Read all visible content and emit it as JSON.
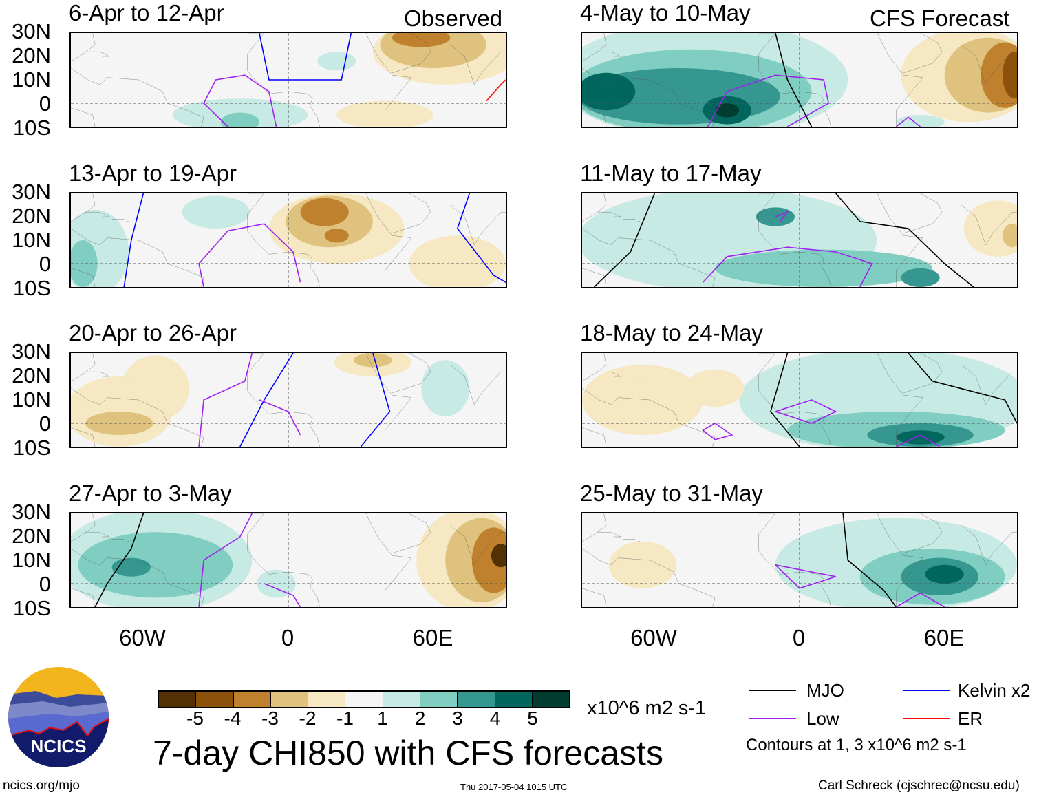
{
  "header": {
    "observed_label": "Observed",
    "forecast_label": "CFS Forecast"
  },
  "lat_labels": [
    "30N",
    "20N",
    "10N",
    "0",
    "10S"
  ],
  "lon_labels": [
    "60W",
    "0",
    "60E"
  ],
  "panels": [
    {
      "title": "6-Apr to 12-Apr",
      "group": "observed",
      "shading": [
        {
          "lon": 65,
          "lat": 22,
          "rlon": 30,
          "rlat": 14,
          "level": -1
        },
        {
          "lon": 60,
          "lat": 25,
          "rlon": 22,
          "rlat": 10,
          "level": -2
        },
        {
          "lon": 55,
          "lat": 28,
          "rlon": 12,
          "rlat": 4,
          "level": -3
        },
        {
          "lon": 40,
          "lat": -5,
          "rlon": 20,
          "rlat": 6,
          "level": -1
        },
        {
          "lon": -20,
          "lat": -5,
          "rlon": 28,
          "rlat": 7,
          "level": 1
        },
        {
          "lon": -20,
          "lat": -8,
          "rlon": 8,
          "rlat": 4,
          "level": 2
        },
        {
          "lon": 20,
          "lat": 18,
          "rlon": 8,
          "rlat": 4,
          "level": 1
        }
      ],
      "contours": [
        {
          "type": "Kelvin",
          "points": [
            [
              -12,
              30
            ],
            [
              -8,
              10
            ],
            [
              22,
              10
            ],
            [
              24,
              20
            ],
            [
              26,
              30
            ]
          ]
        },
        {
          "type": "Low",
          "points": [
            [
              -25,
              -10
            ],
            [
              -35,
              0
            ],
            [
              -30,
              10
            ],
            [
              -18,
              12
            ],
            [
              -8,
              5
            ],
            [
              -5,
              -10
            ]
          ]
        },
        {
          "type": "ER",
          "points": [
            [
              82,
              1
            ],
            [
              88,
              8
            ],
            [
              90,
              10
            ]
          ]
        }
      ]
    },
    {
      "title": "13-Apr to 19-Apr",
      "group": "observed",
      "shading": [
        {
          "lon": 20,
          "lat": 15,
          "rlon": 28,
          "rlat": 15,
          "level": -1
        },
        {
          "lon": 17,
          "lat": 18,
          "rlon": 18,
          "rlat": 11,
          "level": -2
        },
        {
          "lon": 15,
          "lat": 22,
          "rlon": 10,
          "rlat": 6,
          "level": -3
        },
        {
          "lon": 20,
          "lat": 12,
          "rlon": 5,
          "rlat": 3,
          "level": -3
        },
        {
          "lon": 70,
          "lat": 0,
          "rlon": 20,
          "rlat": 12,
          "level": -1
        },
        {
          "lon": -80,
          "lat": 5,
          "rlon": 14,
          "rlat": 18,
          "level": 1
        },
        {
          "lon": -85,
          "lat": 0,
          "rlon": 6,
          "rlat": 10,
          "level": 2
        },
        {
          "lon": -30,
          "lat": 22,
          "rlon": 14,
          "rlat": 7,
          "level": 1
        }
      ],
      "contours": [
        {
          "type": "Kelvin",
          "points": [
            [
              -68,
              -10
            ],
            [
              -65,
              10
            ],
            [
              -60,
              30
            ]
          ]
        },
        {
          "type": "Kelvin",
          "points": [
            [
              75,
              30
            ],
            [
              70,
              15
            ],
            [
              85,
              -5
            ],
            [
              90,
              -8
            ]
          ]
        },
        {
          "type": "Low",
          "points": [
            [
              -35,
              -10
            ],
            [
              -37,
              0
            ],
            [
              -25,
              14
            ],
            [
              -10,
              17
            ],
            [
              2,
              5
            ],
            [
              5,
              -8
            ]
          ]
        }
      ]
    },
    {
      "title": "20-Apr to 26-Apr",
      "group": "observed",
      "shading": [
        {
          "lon": -70,
          "lat": 5,
          "rlon": 22,
          "rlat": 15,
          "level": -1
        },
        {
          "lon": -70,
          "lat": 0,
          "rlon": 14,
          "rlat": 5,
          "level": -2
        },
        {
          "lon": -55,
          "lat": 15,
          "rlon": 14,
          "rlat": 14,
          "level": -1
        },
        {
          "lon": 35,
          "lat": 26,
          "rlon": 16,
          "rlat": 6,
          "level": -1
        },
        {
          "lon": 35,
          "lat": 27,
          "rlon": 8,
          "rlat": 3,
          "level": -2
        },
        {
          "lon": 65,
          "lat": 15,
          "rlon": 10,
          "rlat": 12,
          "level": 1
        }
      ],
      "contours": [
        {
          "type": "Kelvin",
          "points": [
            [
              -20,
              -10
            ],
            [
              -10,
              10
            ],
            [
              2,
              30
            ]
          ]
        },
        {
          "type": "Kelvin",
          "points": [
            [
              30,
              -10
            ],
            [
              42,
              5
            ],
            [
              35,
              30
            ]
          ]
        },
        {
          "type": "Low",
          "points": [
            [
              -37,
              -10
            ],
            [
              -35,
              10
            ],
            [
              -18,
              18
            ],
            [
              -15,
              30
            ]
          ]
        },
        {
          "type": "Low",
          "points": [
            [
              -12,
              10
            ],
            [
              0,
              5
            ],
            [
              5,
              -5
            ]
          ]
        }
      ]
    },
    {
      "title": "27-Apr to 3-May",
      "group": "observed",
      "shading": [
        {
          "lon": -55,
          "lat": 10,
          "rlon": 40,
          "rlat": 22,
          "level": 1
        },
        {
          "lon": -55,
          "lat": 8,
          "rlon": 32,
          "rlat": 14,
          "level": 2
        },
        {
          "lon": -65,
          "lat": 7,
          "rlon": 8,
          "rlat": 4,
          "level": 3
        },
        {
          "lon": 75,
          "lat": 10,
          "rlon": 22,
          "rlat": 22,
          "level": -1
        },
        {
          "lon": 80,
          "lat": 10,
          "rlon": 15,
          "rlat": 18,
          "level": -2
        },
        {
          "lon": 85,
          "lat": 10,
          "rlon": 9,
          "rlat": 14,
          "level": -3
        },
        {
          "lon": 88,
          "lat": 12,
          "rlon": 4,
          "rlat": 5,
          "level": -5
        },
        {
          "lon": -5,
          "lat": 0,
          "rlon": 8,
          "rlat": 6,
          "level": 1
        }
      ],
      "contours": [
        {
          "type": "MJO",
          "points": [
            [
              -80,
              -10
            ],
            [
              -75,
              0
            ],
            [
              -65,
              15
            ],
            [
              -60,
              30
            ]
          ]
        },
        {
          "type": "Low",
          "points": [
            [
              -37,
              -10
            ],
            [
              -35,
              10
            ],
            [
              -20,
              20
            ],
            [
              -15,
              30
            ]
          ]
        },
        {
          "type": "Low",
          "points": [
            [
              -10,
              0
            ],
            [
              2,
              -5
            ],
            [
              5,
              -10
            ]
          ]
        }
      ]
    },
    {
      "title": "4-May to 10-May",
      "group": "forecast",
      "shading": [
        {
          "lon": -40,
          "lat": 10,
          "rlon": 60,
          "rlat": 25,
          "level": 1
        },
        {
          "lon": -45,
          "lat": 5,
          "rlon": 50,
          "rlat": 18,
          "level": 2
        },
        {
          "lon": -50,
          "lat": 3,
          "rlon": 42,
          "rlat": 12,
          "level": 3
        },
        {
          "lon": -80,
          "lat": 5,
          "rlon": 12,
          "rlat": 8,
          "level": 4
        },
        {
          "lon": -30,
          "lat": -3,
          "rlon": 10,
          "rlat": 6,
          "level": 4
        },
        {
          "lon": -30,
          "lat": -3,
          "rlon": 5,
          "rlat": 3,
          "level": 5
        },
        {
          "lon": 70,
          "lat": 12,
          "rlon": 28,
          "rlat": 20,
          "level": -1
        },
        {
          "lon": 78,
          "lat": 12,
          "rlon": 18,
          "rlat": 16,
          "level": -2
        },
        {
          "lon": 85,
          "lat": 12,
          "rlon": 10,
          "rlat": 14,
          "level": -3
        },
        {
          "lon": 89,
          "lat": 12,
          "rlon": 5,
          "rlat": 10,
          "level": -4
        },
        {
          "lon": 50,
          "lat": -8,
          "rlon": 10,
          "rlat": 3,
          "level": 1
        }
      ],
      "contours": [
        {
          "type": "MJO",
          "points": [
            [
              -10,
              30
            ],
            [
              -5,
              10
            ],
            [
              0,
              0
            ],
            [
              5,
              -10
            ]
          ]
        },
        {
          "type": "Low",
          "points": [
            [
              -38,
              -10
            ],
            [
              -30,
              5
            ],
            [
              -10,
              12
            ],
            [
              10,
              10
            ],
            [
              12,
              0
            ],
            [
              -5,
              -10
            ]
          ]
        },
        {
          "type": "Low",
          "points": [
            [
              40,
              -10
            ],
            [
              45,
              -6
            ],
            [
              50,
              -10
            ]
          ]
        }
      ]
    },
    {
      "title": "11-May to 17-May",
      "group": "forecast",
      "shading": [
        {
          "lon": -30,
          "lat": 10,
          "rlon": 62,
          "rlat": 22,
          "level": 1
        },
        {
          "lon": 10,
          "lat": -2,
          "rlon": 45,
          "rlat": 8,
          "level": 2
        },
        {
          "lon": -10,
          "lat": 20,
          "rlon": 8,
          "rlat": 4,
          "level": 3
        },
        {
          "lon": 50,
          "lat": -6,
          "rlon": 8,
          "rlat": 4,
          "level": 3
        },
        {
          "lon": 82,
          "lat": 15,
          "rlon": 14,
          "rlat": 12,
          "level": -1
        },
        {
          "lon": 88,
          "lat": 12,
          "rlon": 4,
          "rlat": 5,
          "level": -2
        }
      ],
      "contours": [
        {
          "type": "MJO",
          "points": [
            [
              -85,
              -10
            ],
            [
              -70,
              5
            ],
            [
              -60,
              30
            ]
          ]
        },
        {
          "type": "MJO",
          "points": [
            [
              15,
              30
            ],
            [
              25,
              18
            ],
            [
              45,
              15
            ],
            [
              60,
              0
            ],
            [
              72,
              -10
            ]
          ]
        },
        {
          "type": "Low",
          "points": [
            [
              -40,
              -8
            ],
            [
              -30,
              3
            ],
            [
              -5,
              7
            ],
            [
              15,
              5
            ],
            [
              30,
              0
            ],
            [
              25,
              -10
            ]
          ]
        },
        {
          "type": "Low",
          "points": [
            [
              -10,
              20
            ],
            [
              -5,
              22
            ],
            [
              -8,
              18
            ]
          ]
        }
      ]
    },
    {
      "title": "18-May to 24-May",
      "group": "forecast",
      "shading": [
        {
          "lon": 35,
          "lat": 10,
          "rlon": 60,
          "rlat": 22,
          "level": 1
        },
        {
          "lon": 40,
          "lat": -3,
          "rlon": 45,
          "rlat": 8,
          "level": 2
        },
        {
          "lon": 50,
          "lat": -5,
          "rlon": 22,
          "rlat": 5,
          "level": 3
        },
        {
          "lon": 50,
          "lat": -6,
          "rlon": 10,
          "rlat": 3,
          "level": 4
        },
        {
          "lon": -65,
          "lat": 10,
          "rlon": 25,
          "rlat": 15,
          "level": -1
        },
        {
          "lon": -35,
          "lat": 15,
          "rlon": 12,
          "rlat": 8,
          "level": -1
        }
      ],
      "contours": [
        {
          "type": "MJO",
          "points": [
            [
              -5,
              30
            ],
            [
              -12,
              5
            ],
            [
              0,
              -10
            ]
          ]
        },
        {
          "type": "MJO",
          "points": [
            [
              45,
              30
            ],
            [
              55,
              18
            ],
            [
              85,
              10
            ],
            [
              90,
              0
            ]
          ]
        },
        {
          "type": "Low",
          "points": [
            [
              -10,
              5
            ],
            [
              5,
              10
            ],
            [
              15,
              5
            ],
            [
              5,
              0
            ],
            [
              -10,
              5
            ]
          ]
        },
        {
          "type": "Low",
          "points": [
            [
              -35,
              0
            ],
            [
              -28,
              -5
            ],
            [
              -35,
              -7
            ],
            [
              -40,
              -3
            ],
            [
              -35,
              0
            ]
          ]
        },
        {
          "type": "Low",
          "points": [
            [
              40,
              -10
            ],
            [
              50,
              -5
            ],
            [
              58,
              -10
            ]
          ]
        }
      ]
    },
    {
      "title": "25-May to 31-May",
      "group": "forecast",
      "shading": [
        {
          "lon": 40,
          "lat": 8,
          "rlon": 50,
          "rlat": 20,
          "level": 1
        },
        {
          "lon": 55,
          "lat": 3,
          "rlon": 30,
          "rlat": 12,
          "level": 2
        },
        {
          "lon": 58,
          "lat": 3,
          "rlon": 16,
          "rlat": 8,
          "level": 3
        },
        {
          "lon": 60,
          "lat": 4,
          "rlon": 8,
          "rlat": 4,
          "level": 4
        },
        {
          "lon": -65,
          "lat": 8,
          "rlon": 14,
          "rlat": 10,
          "level": -1
        }
      ],
      "contours": [
        {
          "type": "MJO",
          "points": [
            [
              18,
              30
            ],
            [
              20,
              10
            ],
            [
              35,
              -3
            ],
            [
              40,
              -10
            ]
          ]
        },
        {
          "type": "Low",
          "points": [
            [
              -10,
              8
            ],
            [
              5,
              5
            ],
            [
              15,
              3
            ],
            [
              0,
              -2
            ],
            [
              -10,
              8
            ]
          ]
        },
        {
          "type": "Low",
          "points": [
            [
              40,
              -10
            ],
            [
              50,
              -4
            ],
            [
              60,
              -10
            ]
          ]
        }
      ]
    }
  ],
  "colorbar": {
    "labels": [
      "-5",
      "-4",
      "-3",
      "-2",
      "-1",
      "1",
      "2",
      "3",
      "4",
      "5"
    ],
    "colors": [
      "#543005",
      "#8c510a",
      "#bf812d",
      "#dfc27d",
      "#f6e8c3",
      "#f5f5f5",
      "#c7eae5",
      "#80cdc1",
      "#35978f",
      "#01665e",
      "#003c30"
    ],
    "units": "x10^6 m2 s-1"
  },
  "level_colors": {
    "-5": "#543005",
    "-4": "#8c510a",
    "-3": "#bf812d",
    "-2": "#dfc27d",
    "-1": "#f6e8c3",
    "1": "#c7eae5",
    "2": "#80cdc1",
    "3": "#35978f",
    "4": "#01665e",
    "5": "#003c30"
  },
  "legend": {
    "items": [
      {
        "label": "MJO",
        "color": "#000000"
      },
      {
        "label": "Kelvin x2",
        "color": "#0000ff"
      },
      {
        "label": "Low",
        "color": "#a020f0"
      },
      {
        "label": "ER",
        "color": "#ff0000"
      }
    ],
    "note": "Contours at 1, 3 x10^6 m2 s-1"
  },
  "contour_colors": {
    "MJO": "#000000",
    "Kelvin": "#0000ff",
    "Low": "#a020f0",
    "ER": "#ff0000"
  },
  "footer": {
    "main_title": "7-day CHI850 with CFS forecasts",
    "logo_text": "NCICS",
    "url": "ncics.org/mjo",
    "timestamp": "Thu 2017-05-04 1015 UTC",
    "credit": "Carl Schreck (cjschrec@ncsu.edu)"
  }
}
